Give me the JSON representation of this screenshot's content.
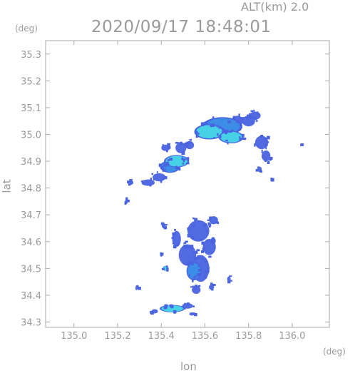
{
  "header": {
    "alt_label": "ALT(km)  2.0",
    "timestamp": "2020/09/17 18:48:01"
  },
  "chart_data": {
    "type": "heatmap",
    "title": "2020/09/17 18:48:01",
    "xlabel": "lon",
    "ylabel": "lat",
    "x_unit": "(deg)",
    "y_unit": "(deg)",
    "xlim": [
      134.87,
      136.17
    ],
    "ylim": [
      34.28,
      35.35
    ],
    "xticks": [
      135.0,
      135.2,
      135.4,
      135.6,
      135.8,
      136.0
    ],
    "xtick_labels": [
      "135.0",
      "135.2",
      "135.4",
      "135.6",
      "135.8",
      "136.0"
    ],
    "yticks": [
      34.3,
      34.4,
      34.5,
      34.6,
      34.7,
      34.8,
      34.9,
      35.0,
      35.1,
      35.2,
      35.3
    ],
    "ytick_labels": [
      "34.3",
      "34.4",
      "34.5",
      "34.6",
      "34.7",
      "34.8",
      "34.9",
      "35.0",
      "35.1",
      "35.2",
      "35.3"
    ],
    "grid": false,
    "colors": {
      "weak": "#4a63e0",
      "moderate": "#3b8fe6",
      "strong": "#46d7e6",
      "axis": "#aaaaaa"
    },
    "echo_regions": [
      {
        "lon": 135.62,
        "lat": 35.01,
        "rlon": 0.06,
        "rlat": 0.025,
        "level": "strong"
      },
      {
        "lon": 135.72,
        "lat": 34.99,
        "rlon": 0.05,
        "rlat": 0.02,
        "level": "strong"
      },
      {
        "lon": 135.68,
        "lat": 35.03,
        "rlon": 0.08,
        "rlat": 0.03,
        "level": "moderate"
      },
      {
        "lon": 135.8,
        "lat": 35.05,
        "rlon": 0.03,
        "rlat": 0.02,
        "level": "weak"
      },
      {
        "lon": 135.83,
        "lat": 35.07,
        "rlon": 0.025,
        "rlat": 0.015,
        "level": "weak"
      },
      {
        "lon": 135.75,
        "lat": 35.05,
        "rlon": 0.025,
        "rlat": 0.02,
        "level": "weak"
      },
      {
        "lon": 135.86,
        "lat": 34.97,
        "rlon": 0.03,
        "rlat": 0.025,
        "level": "weak"
      },
      {
        "lon": 135.88,
        "lat": 34.92,
        "rlon": 0.02,
        "rlat": 0.02,
        "level": "weak"
      },
      {
        "lon": 135.47,
        "lat": 34.9,
        "rlon": 0.05,
        "rlat": 0.02,
        "level": "strong"
      },
      {
        "lon": 135.44,
        "lat": 34.88,
        "rlon": 0.04,
        "rlat": 0.02,
        "level": "moderate"
      },
      {
        "lon": 135.49,
        "lat": 34.95,
        "rlon": 0.025,
        "rlat": 0.02,
        "level": "weak"
      },
      {
        "lon": 135.53,
        "lat": 34.96,
        "rlon": 0.02,
        "rlat": 0.015,
        "level": "weak"
      },
      {
        "lon": 135.42,
        "lat": 34.95,
        "rlon": 0.02,
        "rlat": 0.012,
        "level": "weak"
      },
      {
        "lon": 135.39,
        "lat": 34.84,
        "rlon": 0.03,
        "rlat": 0.015,
        "level": "weak"
      },
      {
        "lon": 135.34,
        "lat": 34.82,
        "rlon": 0.03,
        "rlat": 0.012,
        "level": "weak"
      },
      {
        "lon": 135.24,
        "lat": 34.75,
        "rlon": 0.006,
        "rlat": 0.01,
        "level": "weak"
      },
      {
        "lon": 135.26,
        "lat": 34.82,
        "rlon": 0.012,
        "rlat": 0.008,
        "level": "weak"
      },
      {
        "lon": 135.57,
        "lat": 34.64,
        "rlon": 0.05,
        "rlat": 0.04,
        "level": "weak"
      },
      {
        "lon": 135.52,
        "lat": 34.55,
        "rlon": 0.04,
        "rlat": 0.04,
        "level": "weak"
      },
      {
        "lon": 135.58,
        "lat": 34.5,
        "rlon": 0.04,
        "rlat": 0.05,
        "level": "weak"
      },
      {
        "lon": 135.55,
        "lat": 34.49,
        "rlon": 0.03,
        "rlat": 0.03,
        "level": "moderate"
      },
      {
        "lon": 135.62,
        "lat": 34.58,
        "rlon": 0.03,
        "rlat": 0.03,
        "level": "weak"
      },
      {
        "lon": 135.47,
        "lat": 34.61,
        "rlon": 0.02,
        "rlat": 0.03,
        "level": "weak"
      },
      {
        "lon": 135.64,
        "lat": 34.68,
        "rlon": 0.02,
        "rlat": 0.015,
        "level": "weak"
      },
      {
        "lon": 135.41,
        "lat": 34.66,
        "rlon": 0.008,
        "rlat": 0.01,
        "level": "weak"
      },
      {
        "lon": 135.42,
        "lat": 34.5,
        "rlon": 0.012,
        "rlat": 0.008,
        "level": "strong"
      },
      {
        "lon": 135.4,
        "lat": 34.55,
        "rlon": 0.006,
        "rlat": 0.006,
        "level": "weak"
      },
      {
        "lon": 135.56,
        "lat": 34.42,
        "rlon": 0.02,
        "rlat": 0.015,
        "level": "weak"
      },
      {
        "lon": 135.63,
        "lat": 34.43,
        "rlon": 0.012,
        "rlat": 0.01,
        "level": "weak"
      },
      {
        "lon": 135.29,
        "lat": 34.43,
        "rlon": 0.008,
        "rlat": 0.008,
        "level": "weak"
      },
      {
        "lon": 135.45,
        "lat": 34.35,
        "rlon": 0.05,
        "rlat": 0.012,
        "level": "strong"
      },
      {
        "lon": 135.37,
        "lat": 34.34,
        "rlon": 0.015,
        "rlat": 0.008,
        "level": "weak"
      },
      {
        "lon": 135.52,
        "lat": 34.36,
        "rlon": 0.025,
        "rlat": 0.01,
        "level": "weak"
      },
      {
        "lon": 135.54,
        "lat": 34.33,
        "rlon": 0.012,
        "rlat": 0.006,
        "level": "weak"
      },
      {
        "lon": 135.71,
        "lat": 34.46,
        "rlon": 0.008,
        "rlat": 0.01,
        "level": "weak"
      },
      {
        "lon": 135.91,
        "lat": 34.83,
        "rlon": 0.006,
        "rlat": 0.006,
        "level": "weak"
      },
      {
        "lon": 135.85,
        "lat": 34.87,
        "rlon": 0.01,
        "rlat": 0.01,
        "level": "weak"
      },
      {
        "lon": 136.04,
        "lat": 34.96,
        "rlon": 0.003,
        "rlat": 0.003,
        "level": "weak"
      }
    ]
  }
}
